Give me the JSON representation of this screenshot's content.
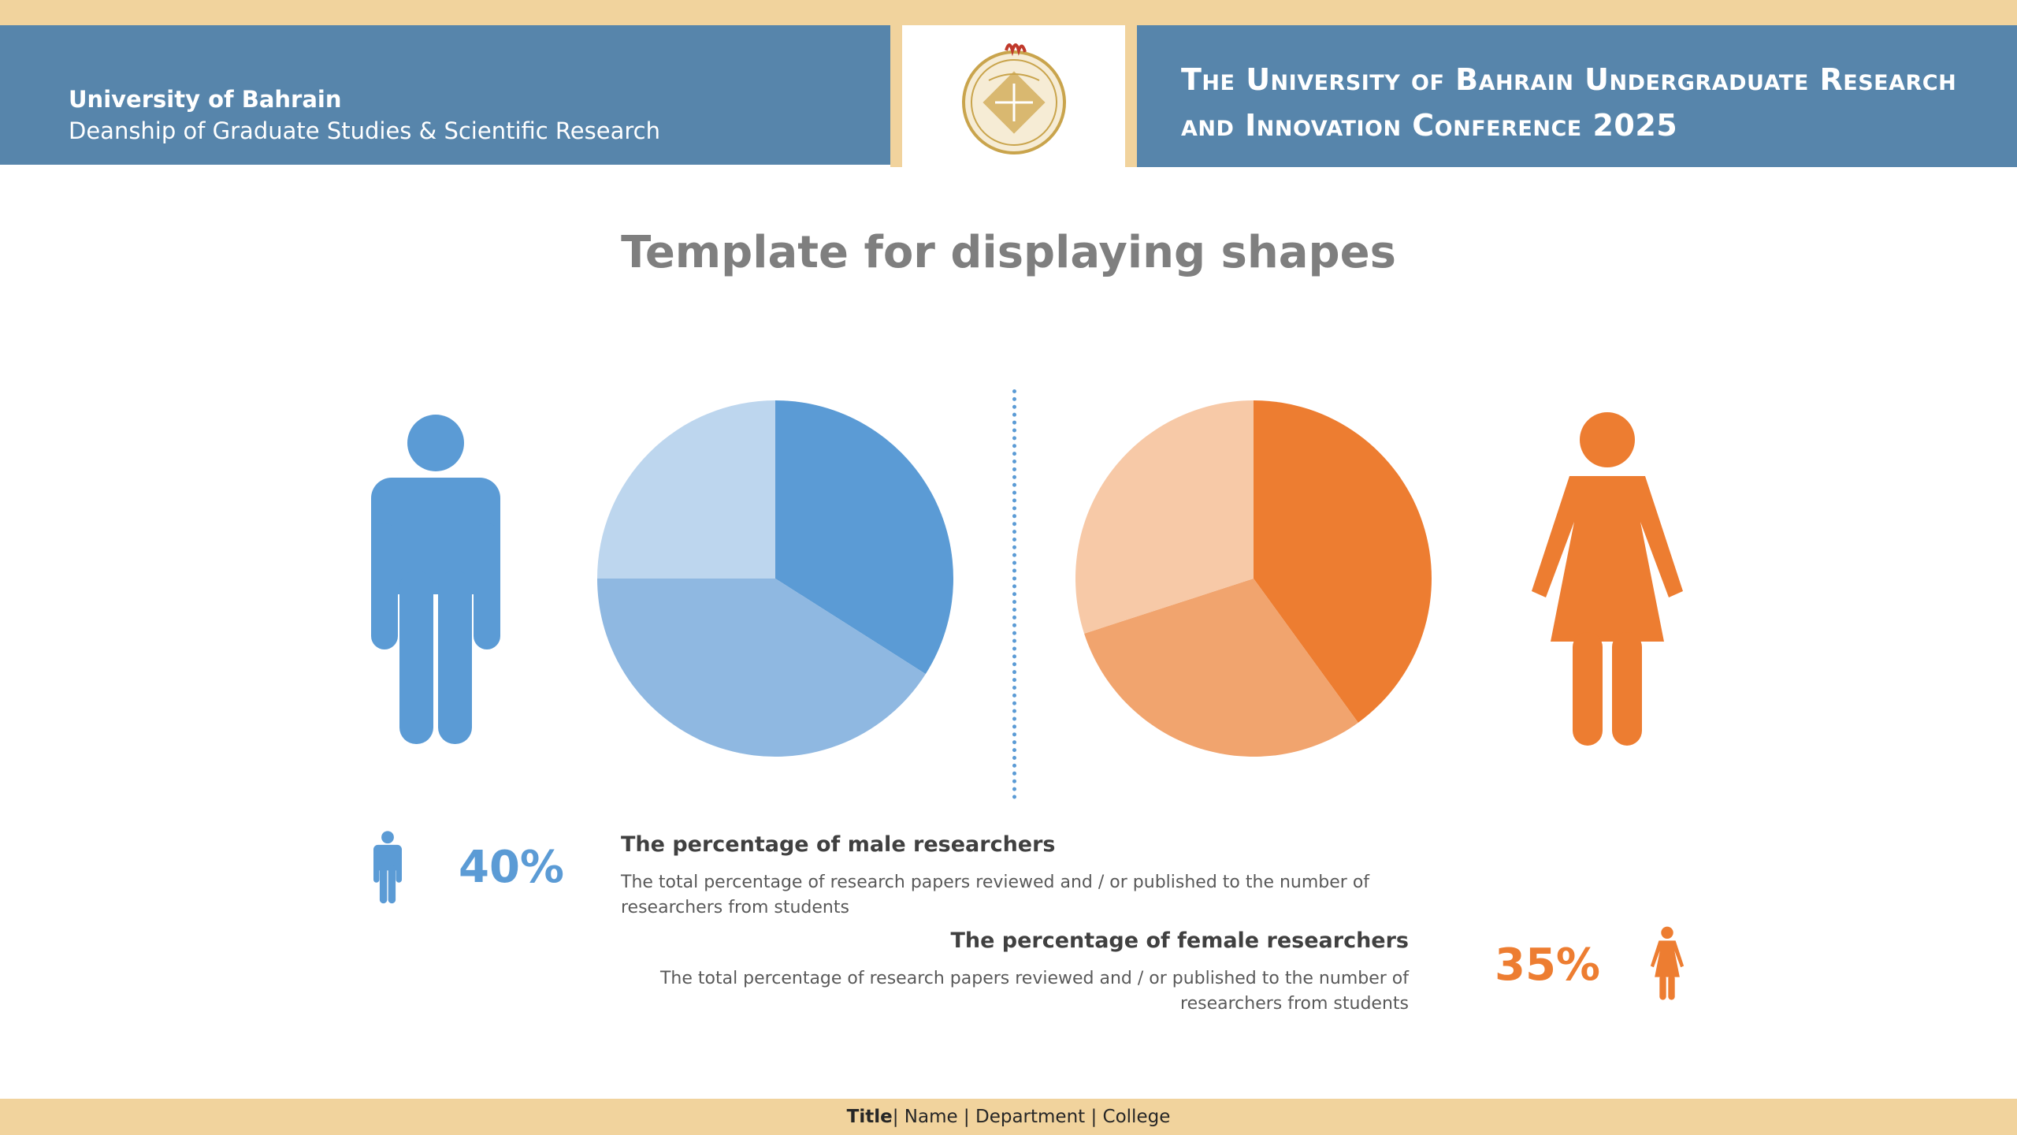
{
  "header": {
    "university": "University of Bahrain",
    "deanship": "Deanship of Graduate Studies & Scientific Research",
    "conference_line1": "The University of Bahrain Undergraduate Research",
    "conference_line2": "and Innovation Conference 2025"
  },
  "page_title": "Template for displaying shapes",
  "colors": {
    "header_blue": "#5785ab",
    "gold": "#f1d39d",
    "male_blue": "#5b9bd5",
    "female_orange": "#ed7d31"
  },
  "icons": [
    "university-logo-icon",
    "male-figure-icon",
    "female-figure-icon"
  ],
  "male": {
    "percentage": "40%",
    "title": "The percentage of male researchers",
    "description": "The total percentage of research papers reviewed and / or published to the number of researchers from students"
  },
  "female": {
    "percentage": "35%",
    "title": "The percentage of female researchers",
    "description": "The total percentage of research papers reviewed and / or published to the number of researchers from students"
  },
  "chart_data": [
    {
      "type": "pie",
      "values": [
        34,
        41,
        25
      ],
      "colors": [
        "#5b9bd5",
        "#8fb8e1",
        "#bdd6ee"
      ]
    },
    {
      "type": "pie",
      "values": [
        40,
        30,
        30
      ],
      "colors": [
        "#ed7d31",
        "#f1a46e",
        "#f7c9a7"
      ]
    }
  ],
  "footer": {
    "title": "Title",
    "rest": "| Name | Department | College"
  }
}
